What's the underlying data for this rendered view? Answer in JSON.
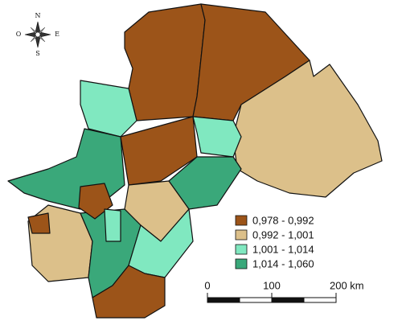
{
  "compass": {
    "north": "N",
    "south": "S",
    "east": "E",
    "west": "O"
  },
  "legend": [
    {
      "label": "0,978 - 0,992",
      "color": "#9c5419"
    },
    {
      "label": "0,992 - 1,001",
      "color": "#dcc08a"
    },
    {
      "label": "1,001 - 1,014",
      "color": "#80e8c0"
    },
    {
      "label": "1,014 - 1,060",
      "color": "#3aa87a"
    }
  ],
  "scale_bar": {
    "labels": [
      "0",
      "100",
      "200 km"
    ]
  }
}
